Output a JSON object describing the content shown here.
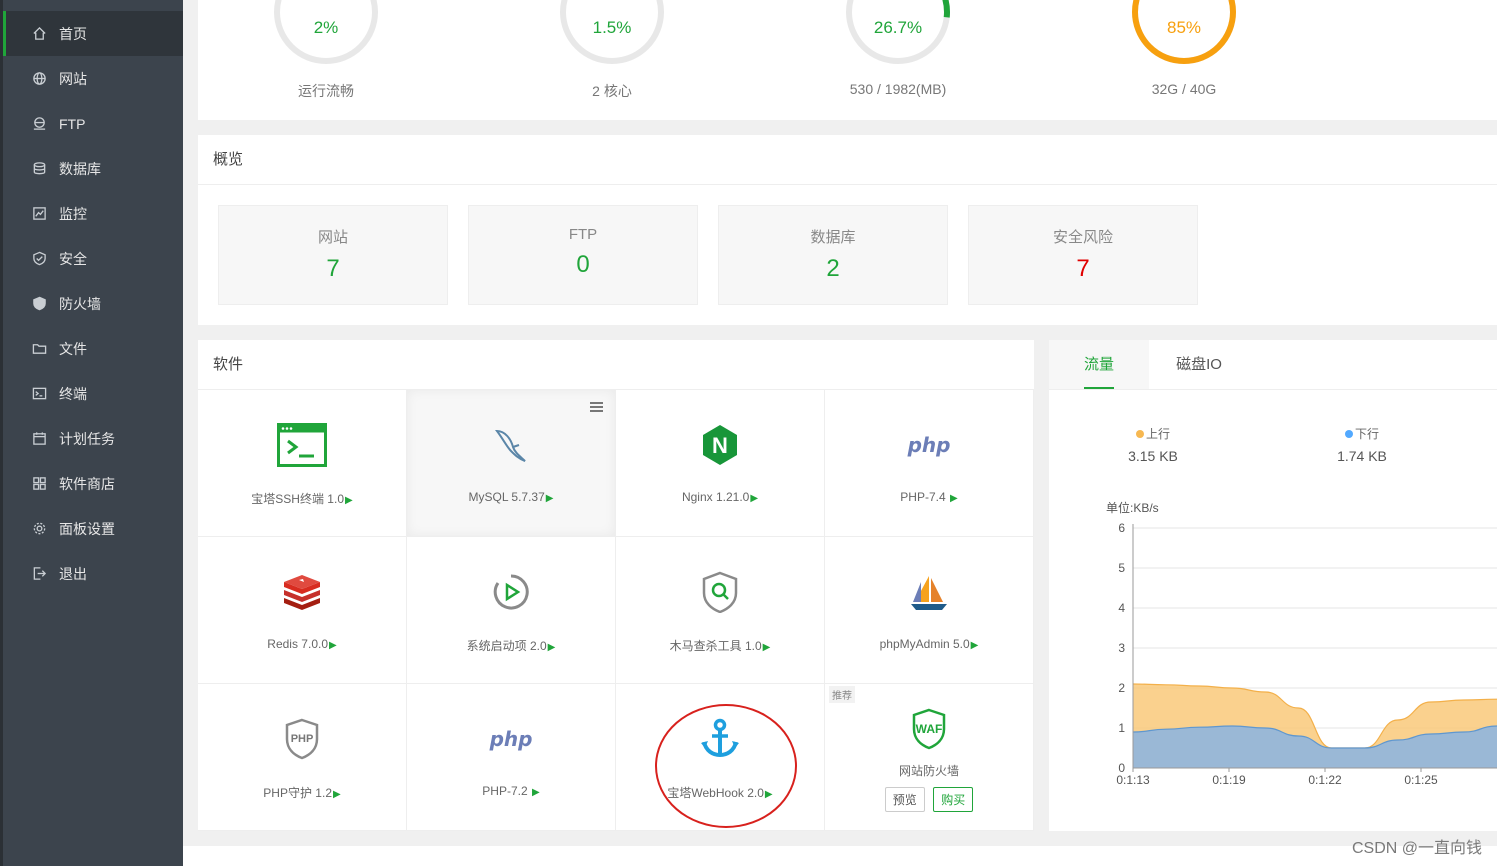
{
  "sidebar": {
    "items": [
      {
        "label": "首页",
        "icon": "home-icon",
        "active": true
      },
      {
        "label": "网站",
        "icon": "globe-icon"
      },
      {
        "label": "FTP",
        "icon": "ftp-icon"
      },
      {
        "label": "数据库",
        "icon": "database-icon"
      },
      {
        "label": "监控",
        "icon": "monitor-icon"
      },
      {
        "label": "安全",
        "icon": "shield-icon"
      },
      {
        "label": "防火墙",
        "icon": "firewall-icon"
      },
      {
        "label": "文件",
        "icon": "folder-icon"
      },
      {
        "label": "终端",
        "icon": "terminal-icon"
      },
      {
        "label": "计划任务",
        "icon": "calendar-icon"
      },
      {
        "label": "软件商店",
        "icon": "grid-icon"
      },
      {
        "label": "面板设置",
        "icon": "gear-icon"
      },
      {
        "label": "退出",
        "icon": "logout-icon"
      }
    ]
  },
  "status": {
    "gauges": [
      {
        "value": "2%",
        "caption": "运行流畅",
        "percent": 2,
        "color": "#20a53a"
      },
      {
        "value": "1.5%",
        "caption": "2 核心",
        "percent": 1.5,
        "color": "#20a53a"
      },
      {
        "value": "26.7%",
        "caption": "530 / 1982(MB)",
        "percent": 26.7,
        "color": "#20a53a"
      },
      {
        "value": "85%",
        "caption": "32G / 40G",
        "percent": 85,
        "color": "#f7a00f"
      }
    ]
  },
  "overview": {
    "title": "概览",
    "cards": [
      {
        "label": "网站",
        "value": "7"
      },
      {
        "label": "FTP",
        "value": "0"
      },
      {
        "label": "数据库",
        "value": "2"
      },
      {
        "label": "安全风险",
        "value": "7"
      }
    ]
  },
  "software": {
    "title": "软件",
    "items": [
      {
        "name": "宝塔SSH终端 1.0",
        "icon": "ssh-terminal-icon"
      },
      {
        "name": "MySQL 5.7.37",
        "icon": "mysql-dolphin-icon"
      },
      {
        "name": "Nginx 1.21.0",
        "icon": "nginx-icon"
      },
      {
        "name": "PHP-7.4 ",
        "icon": "php-icon"
      },
      {
        "name": "Redis 7.0.0",
        "icon": "redis-icon"
      },
      {
        "name": "系统启动项 2.0",
        "icon": "startup-icon"
      },
      {
        "name": "木马查杀工具 1.0",
        "icon": "trojan-scan-icon"
      },
      {
        "name": "phpMyAdmin 5.0",
        "icon": "phpmyadmin-icon"
      },
      {
        "name": "PHP守护 1.2",
        "icon": "php-guard-icon"
      },
      {
        "name": "PHP-7.2 ",
        "icon": "php-icon"
      },
      {
        "name": "宝塔WebHook 2.0",
        "icon": "anchor-icon"
      },
      {
        "name": "网站防火墙",
        "icon": "waf-icon",
        "tag": "推荐",
        "buttons": [
          "预览",
          "购买"
        ]
      }
    ],
    "php_logo_text": "php",
    "php_guard_text": "PHP",
    "waf_text": "WAF",
    "nginx_letter": "N"
  },
  "traffic": {
    "tabs": [
      "流量",
      "磁盘IO"
    ],
    "up": {
      "label": "上行",
      "value": "3.15 KB",
      "color": "#f7b851"
    },
    "down": {
      "label": "下行",
      "value": "1.74 KB",
      "color": "#52a9ff"
    }
  },
  "chart_data": {
    "type": "area",
    "ylabel": "单位:KB/s",
    "ylim": [
      0,
      6
    ],
    "yticks": [
      "0",
      "1",
      "2",
      "3",
      "4",
      "5",
      "6"
    ],
    "x_ticks": [
      "0:1:13",
      "0:1:19",
      "0:1:22",
      "0:1:25"
    ],
    "x": [
      0,
      1,
      2,
      3,
      4,
      5,
      6,
      7,
      8,
      9,
      10,
      11,
      12
    ],
    "series": [
      {
        "name": "上行",
        "color": "#f7b851",
        "values": [
          2.1,
          2.08,
          2.05,
          2.0,
          1.9,
          1.5,
          0.5,
          0.5,
          1.2,
          1.65,
          1.7,
          1.72,
          1.72
        ]
      },
      {
        "name": "下行",
        "color": "#7fb3e6",
        "values": [
          0.9,
          0.97,
          1.02,
          1.05,
          1.0,
          0.8,
          0.5,
          0.5,
          0.7,
          0.85,
          0.9,
          1.05,
          1.3
        ]
      }
    ]
  },
  "watermark": "CSDN @一直向钱"
}
